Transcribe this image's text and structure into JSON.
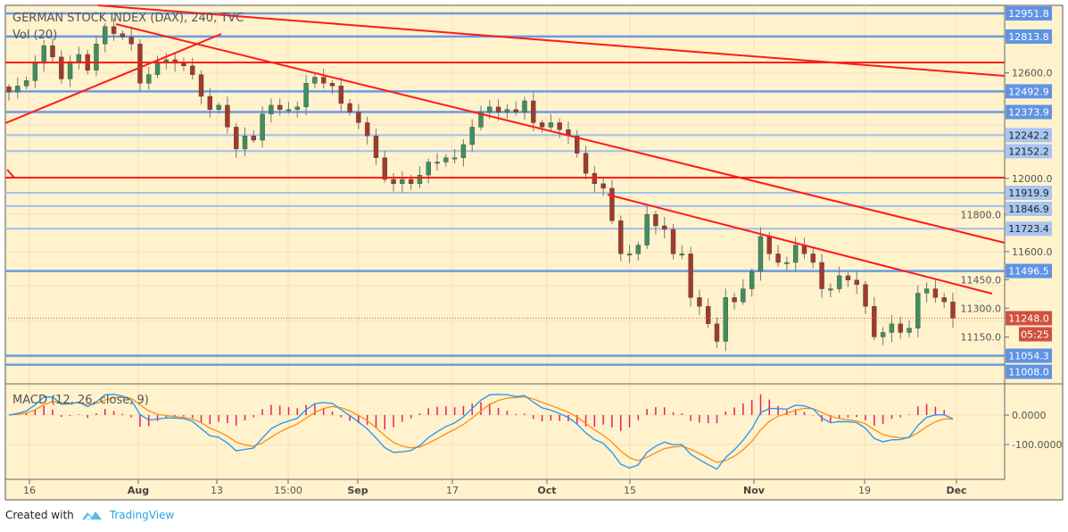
{
  "chart_data": {
    "type": "candlestick",
    "title": "GERMAN STOCK INDEX (DAX), 240, TVC",
    "volume_label": "Vol (20)",
    "price_scale": "log",
    "yrange": [
      11008.0,
      12951.8
    ],
    "y_ticks": [
      "12600.0",
      "12000.0",
      "11800.0",
      "11600.0",
      "11450.0",
      "11300.0",
      "11150.0"
    ],
    "levels": [
      {
        "value": 12951.8,
        "label": "12951.8",
        "style": "strong"
      },
      {
        "value": 12813.8,
        "label": "12813.8",
        "style": "strong"
      },
      {
        "value": 12492.9,
        "label": "12492.9",
        "style": "strong"
      },
      {
        "value": 12373.9,
        "label": "12373.9",
        "style": "strong"
      },
      {
        "value": 12242.2,
        "label": "12242.2",
        "style": "light"
      },
      {
        "value": 12152.2,
        "label": "12152.2",
        "style": "light"
      },
      {
        "value": 11919.9,
        "label": "11919.9",
        "style": "light"
      },
      {
        "value": 11846.9,
        "label": "11846.9",
        "style": "light"
      },
      {
        "value": 11723.4,
        "label": "11723.4",
        "style": "light"
      },
      {
        "value": 11496.5,
        "label": "11496.5",
        "style": "strong"
      },
      {
        "value": 11054.3,
        "label": "11054.3",
        "style": "strong"
      },
      {
        "value": 11008.0,
        "label": "11008.0",
        "style": "strong"
      }
    ],
    "current_price": {
      "label": "11248.0",
      "value": 11248.0,
      "countdown": "05:25"
    },
    "closes": [
      12489,
      12524,
      12555,
      12656,
      12760,
      12693,
      12565,
      12666,
      12708,
      12615,
      12770,
      12873,
      12831,
      12811,
      12770,
      12540,
      12590,
      12666,
      12677,
      12656,
      12641,
      12590,
      12464,
      12388,
      12413,
      12288,
      12164,
      12238,
      12214,
      12363,
      12413,
      12388,
      12388,
      12403,
      12540,
      12575,
      12540,
      12524,
      12423,
      12373,
      12313,
      12238,
      12115,
      11994,
      11970,
      11994,
      11970,
      12018,
      12091,
      12091,
      12115,
      12115,
      12189,
      12288,
      12373,
      12403,
      12373,
      12388,
      12373,
      12438,
      12313,
      12288,
      12313,
      12273,
      12238,
      12140,
      12028,
      11970,
      11945,
      11767,
      11588,
      11588,
      11635,
      11801,
      11739,
      11720,
      11588,
      11588,
      11356,
      11310,
      11219,
      11128,
      11356,
      11333,
      11402,
      11495,
      11682,
      11588,
      11542,
      11542,
      11635,
      11588,
      11542,
      11402,
      11402,
      11471,
      11448,
      11425,
      11310,
      11151,
      11174,
      11219,
      11174,
      11196,
      11379,
      11402,
      11356,
      11333,
      11248
    ],
    "x_ticks": [
      {
        "label": "16",
        "bold": false
      },
      {
        "label": "Aug",
        "bold": true
      },
      {
        "label": "13",
        "bold": false
      },
      {
        "label": "15:00",
        "bold": false
      },
      {
        "label": "Sep",
        "bold": true
      },
      {
        "label": "17",
        "bold": false
      },
      {
        "label": "Oct",
        "bold": true
      },
      {
        "label": "15",
        "bold": false
      },
      {
        "label": "Nov",
        "bold": true
      },
      {
        "label": "19",
        "bold": false
      },
      {
        "label": "Dec",
        "bold": true
      }
    ],
    "macd": {
      "label": "MACD (12, 26, close, 9)",
      "y_ticks": [
        "0.0000",
        "-100.0000"
      ],
      "colors": {
        "macd": "#2196f3",
        "signal": "#ff8c1a",
        "histogram": "#e91e63"
      }
    },
    "colors": {
      "up": "#3f8f5f",
      "down": "#a23a2c",
      "level_strong": "#6a9be6",
      "level_light": "#9fc0f0",
      "trend": "#ff1a1a",
      "background": "#fff2cc"
    }
  },
  "footer": {
    "created_with": "Created with",
    "brand": "TradingView"
  }
}
